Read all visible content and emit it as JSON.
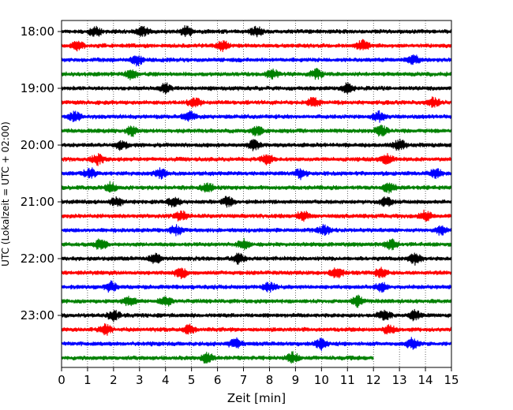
{
  "chart_data": {
    "type": "line",
    "subtype": "helicorder",
    "xlabel": "Zeit  [min]",
    "ylabel": "UTC (Lokalzeit = UTC + 02:00)",
    "xlim": [
      0,
      15
    ],
    "x_ticks": [
      0,
      1,
      2,
      3,
      4,
      5,
      6,
      7,
      8,
      9,
      10,
      11,
      12,
      13,
      14,
      15
    ],
    "y_ticks": [
      "18:00",
      "19:00",
      "20:00",
      "21:00",
      "22:00",
      "23:00"
    ],
    "grid": "vertical-dotted",
    "row_colors": [
      "#000000",
      "#ff0000",
      "#0000ff",
      "#008000"
    ],
    "rows": [
      {
        "start": "18:00",
        "end_min": 15,
        "bursts": [
          1.3,
          3.1,
          4.8,
          7.5
        ]
      },
      {
        "start": "18:15",
        "end_min": 15,
        "bursts": [
          0.6,
          6.2,
          11.6
        ]
      },
      {
        "start": "18:30",
        "end_min": 15,
        "bursts": [
          2.9,
          13.5
        ]
      },
      {
        "start": "18:45",
        "end_min": 15,
        "bursts": [
          2.7,
          8.1,
          9.8
        ]
      },
      {
        "start": "19:00",
        "end_min": 15,
        "bursts": [
          4.0,
          11.0
        ]
      },
      {
        "start": "19:15",
        "end_min": 15,
        "bursts": [
          5.1,
          9.7,
          14.3
        ]
      },
      {
        "start": "19:30",
        "end_min": 15,
        "bursts": [
          0.5,
          4.9,
          12.2
        ]
      },
      {
        "start": "19:45",
        "end_min": 15,
        "bursts": [
          2.7,
          7.5,
          12.3
        ]
      },
      {
        "start": "20:00",
        "end_min": 15,
        "bursts": [
          2.3,
          7.4,
          13.0
        ]
      },
      {
        "start": "20:15",
        "end_min": 15,
        "bursts": [
          1.4,
          7.9,
          12.5
        ]
      },
      {
        "start": "20:30",
        "end_min": 15,
        "bursts": [
          1.1,
          3.8,
          9.2,
          14.4
        ]
      },
      {
        "start": "20:45",
        "end_min": 15,
        "bursts": [
          1.9,
          5.6,
          12.6
        ]
      },
      {
        "start": "21:00",
        "end_min": 15,
        "bursts": [
          2.1,
          4.3,
          6.4,
          12.5
        ]
      },
      {
        "start": "21:15",
        "end_min": 15,
        "bursts": [
          4.6,
          9.3,
          14.0
        ]
      },
      {
        "start": "21:30",
        "end_min": 15,
        "bursts": [
          4.4,
          10.1,
          14.6
        ]
      },
      {
        "start": "21:45",
        "end_min": 15,
        "bursts": [
          1.5,
          7.0,
          12.7
        ]
      },
      {
        "start": "22:00",
        "end_min": 15,
        "bursts": [
          3.6,
          6.8,
          13.6
        ]
      },
      {
        "start": "22:15",
        "end_min": 15,
        "bursts": [
          4.6,
          10.6,
          12.3
        ]
      },
      {
        "start": "22:30",
        "end_min": 15,
        "bursts": [
          1.9,
          8.0,
          12.3
        ]
      },
      {
        "start": "22:45",
        "end_min": 15,
        "bursts": [
          2.6,
          4.0,
          11.4
        ]
      },
      {
        "start": "23:00",
        "end_min": 15,
        "bursts": [
          2.0,
          12.4,
          13.6
        ]
      },
      {
        "start": "23:15",
        "end_min": 15,
        "bursts": [
          1.7,
          4.9,
          12.6
        ]
      },
      {
        "start": "23:30",
        "end_min": 15,
        "bursts": [
          6.7,
          10.0,
          13.5
        ]
      },
      {
        "start": "23:45",
        "end_min": 12,
        "bursts": [
          5.6,
          8.9
        ]
      }
    ]
  }
}
